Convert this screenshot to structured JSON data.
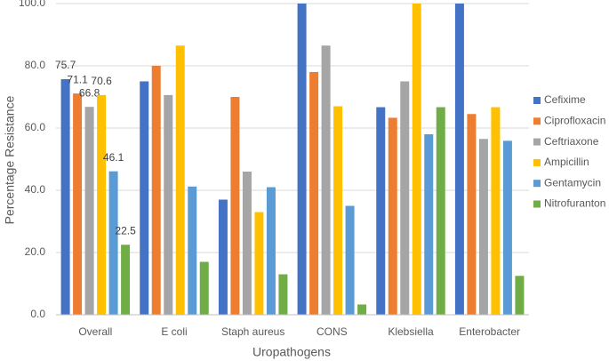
{
  "chart_data": {
    "type": "bar",
    "x_label": "Uropathogens",
    "y_label": "Percentage Resistance",
    "categories": [
      "Overall",
      "E coli",
      "Staph aureus",
      "CONS",
      "Klebsiella",
      "Enterobacter"
    ],
    "series": [
      {
        "name": "Cefixime",
        "color": "#4472c4",
        "values": [
          75.7,
          75,
          37,
          100,
          66.7,
          100
        ],
        "value_labels": [
          "75.7",
          null,
          null,
          null,
          null,
          null
        ]
      },
      {
        "name": "Ciprofloxacin",
        "color": "#ed7d31",
        "values": [
          71.1,
          80,
          70,
          78,
          63.3,
          64.5
        ],
        "value_labels": [
          "71.1",
          null,
          null,
          null,
          null,
          null
        ]
      },
      {
        "name": "Ceftriaxone",
        "color": "#a5a5a5",
        "values": [
          66.8,
          70.6,
          46,
          86.5,
          75,
          56.5
        ],
        "value_labels": [
          "66.8",
          null,
          null,
          null,
          null,
          null
        ]
      },
      {
        "name": "Ampicillin",
        "color": "#ffc000",
        "values": [
          70.6,
          86.5,
          33,
          67,
          100,
          66.7
        ],
        "value_labels": [
          "70.6",
          null,
          null,
          null,
          null,
          null
        ]
      },
      {
        "name": "Gentamycin",
        "color": "#5b9bd5",
        "values": [
          46.1,
          41.2,
          41,
          35,
          58,
          55.9
        ],
        "value_labels": [
          "46.1",
          null,
          null,
          null,
          null,
          null
        ]
      },
      {
        "name": "Nitrofuranton",
        "color": "#70ad47",
        "values": [
          22.5,
          17,
          13,
          3.3,
          66.7,
          12.5
        ],
        "value_labels": [
          "22.5",
          null,
          null,
          null,
          null,
          null
        ]
      }
    ],
    "ylim": [
      0,
      100
    ],
    "yticks": [
      {
        "value": 0,
        "label": "0.0"
      },
      {
        "value": 20,
        "label": "20.0"
      },
      {
        "value": 40,
        "label": "40.0"
      },
      {
        "value": 60,
        "label": "60.0"
      },
      {
        "value": 80,
        "label": "80.0"
      },
      {
        "value": 100,
        "label": "100.0"
      }
    ],
    "grid": true,
    "legend": "right"
  }
}
